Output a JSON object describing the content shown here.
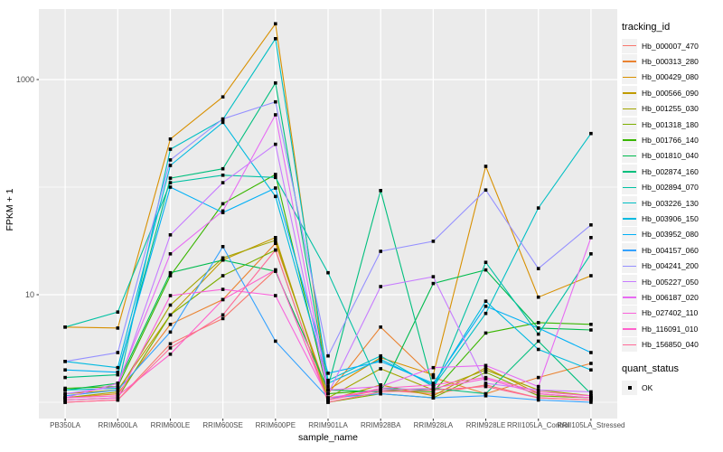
{
  "figure": {
    "background": "#FFFFFF",
    "panel_background": "#EBEBEB",
    "grid_color": "#FFFFFF",
    "tick_color": "#333333",
    "tick_label_color": "#4D4D4D"
  },
  "axes": {
    "x_title": "sample_name",
    "y_title": "FPKM + 1",
    "y_tick_labels": [
      "10",
      "1000"
    ]
  },
  "legend": {
    "tracking_title": "tracking_id",
    "quant_title": "quant_status",
    "quant_value": "OK"
  },
  "chart_data": {
    "type": "line",
    "title": "",
    "xlabel": "sample_name",
    "ylabel": "FPKM + 1",
    "x_scale": "categorical",
    "y_scale": "log10",
    "ylim": [
      0.7,
      4500
    ],
    "y_breaks": [
      10,
      1000
    ],
    "y_minor_breaks": [
      1,
      100
    ],
    "grid": true,
    "legend_position": "right",
    "point_marker": {
      "shape": "square",
      "color": "#000000",
      "size": 3.6,
      "meaning": "quant_status OK"
    },
    "categories": [
      "PB350LA",
      "RRIM600LA",
      "RRIM600LE",
      "RRIM600SE",
      "RRIM600PE",
      "RRIM901LA",
      "RRIM928BA",
      "RRIM928LA",
      "RRIM928LE",
      "RRII105LA_Control",
      "RRII105LA_Stressed"
    ],
    "series": [
      {
        "name": "Hb_000007_470",
        "color": "#F8766D",
        "values": [
          1.0,
          1.05,
          3.5,
          6.0,
          17,
          1.05,
          1.3,
          1.2,
          1.45,
          1.1,
          1.05
        ]
      },
      {
        "name": "Hb_000313_280",
        "color": "#EA8331",
        "values": [
          1.1,
          1.2,
          5.3,
          9.0,
          30,
          1.2,
          5.0,
          1.7,
          1.2,
          1.7,
          2.3
        ]
      },
      {
        "name": "Hb_000429_080",
        "color": "#D89000",
        "values": [
          5.0,
          4.9,
          280,
          690,
          3300,
          1.3,
          2.6,
          1.8,
          156,
          9.5,
          15
        ]
      },
      {
        "name": "Hb_000566_090",
        "color": "#C09B00",
        "values": [
          1.2,
          1.3,
          6.5,
          21,
          34,
          1.05,
          1.45,
          1.15,
          2.1,
          1.2,
          1.1
        ]
      },
      {
        "name": "Hb_001255_030",
        "color": "#A3A500",
        "values": [
          1.1,
          1.25,
          8.0,
          22,
          32,
          1.1,
          2.05,
          1.3,
          2.0,
          1.3,
          1.15
        ]
      },
      {
        "name": "Hb_001318_180",
        "color": "#7CAE00",
        "values": [
          1.05,
          1.1,
          6.5,
          15,
          26,
          1.0,
          1.2,
          1.1,
          1.9,
          1.15,
          1.1
        ]
      },
      {
        "name": "Hb_001766_140",
        "color": "#39B600",
        "values": [
          1.35,
          1.4,
          15,
          70,
          131,
          1.2,
          1.3,
          1.25,
          4.4,
          5.5,
          5.3
        ]
      },
      {
        "name": "Hb_001810_040",
        "color": "#00BB4E",
        "values": [
          1.3,
          1.5,
          16,
          21,
          16.5,
          1.3,
          1.25,
          12.7,
          17,
          4.9,
          4.7
        ]
      },
      {
        "name": "Hb_002874_160",
        "color": "#00BF7D",
        "values": [
          1.7,
          1.8,
          121,
          148,
          930,
          1.4,
          93,
          1.35,
          1.2,
          3.7,
          1.2
        ]
      },
      {
        "name": "Hb_002894_070",
        "color": "#00C1A3",
        "values": [
          5.0,
          6.9,
          110,
          129,
          123,
          16,
          1.35,
          1.3,
          20,
          4.3,
          24
        ]
      },
      {
        "name": "Hb_003226_130",
        "color": "#00BFC4",
        "values": [
          1.3,
          1.35,
          225,
          425,
          2400,
          1.6,
          2.7,
          1.4,
          6.7,
          64,
          315
        ]
      },
      {
        "name": "Hb_003906_150",
        "color": "#00BAE0",
        "values": [
          2.4,
          2.1,
          159,
          400,
          82,
          1.5,
          2.5,
          1.45,
          8.7,
          3.1,
          2.0
        ]
      },
      {
        "name": "Hb_003952_080",
        "color": "#00B0F6",
        "values": [
          2.0,
          1.9,
          100,
          58,
          98,
          1.86,
          2.4,
          1.5,
          7.8,
          4.9,
          2.9
        ]
      },
      {
        "name": "Hb_004157_060",
        "color": "#35A2FF",
        "values": [
          1.15,
          1.3,
          4.5,
          28,
          3.7,
          1.1,
          1.2,
          1.1,
          1.15,
          1.05,
          1.0
        ]
      },
      {
        "name": "Hb_004241_200",
        "color": "#9590FF",
        "values": [
          2.4,
          2.9,
          179,
          430,
          620,
          2.7,
          25.3,
          31.4,
          94,
          17.5,
          44.5
        ]
      },
      {
        "name": "Hb_005227_050",
        "color": "#C77CFF",
        "values": [
          1.2,
          1.4,
          36,
          110,
          250,
          1.2,
          11.9,
          14.7,
          1.5,
          1.3,
          1.25
        ]
      },
      {
        "name": "Hb_006187_020",
        "color": "#E76BF3",
        "values": [
          1.1,
          1.5,
          24,
          60,
          470,
          1.3,
          1.4,
          2.1,
          2.2,
          1.4,
          34
        ]
      },
      {
        "name": "Hb_027402_110",
        "color": "#FA62DB",
        "values": [
          1.05,
          1.1,
          9.8,
          11.2,
          9.8,
          1.1,
          1.3,
          1.35,
          1.65,
          1.2,
          1.1
        ]
      },
      {
        "name": "Hb_116091_010",
        "color": "#FF61CC",
        "values": [
          1.1,
          1.15,
          2.8,
          9.0,
          17,
          1.05,
          1.35,
          1.45,
          1.7,
          1.25,
          1.15
        ]
      },
      {
        "name": "Hb_156850_040",
        "color": "#FF6A98",
        "values": [
          1.0,
          1.05,
          3.2,
          6.5,
          26,
          1.0,
          1.25,
          1.3,
          1.4,
          1.1,
          1.05
        ]
      }
    ],
    "quant_status": "OK"
  }
}
